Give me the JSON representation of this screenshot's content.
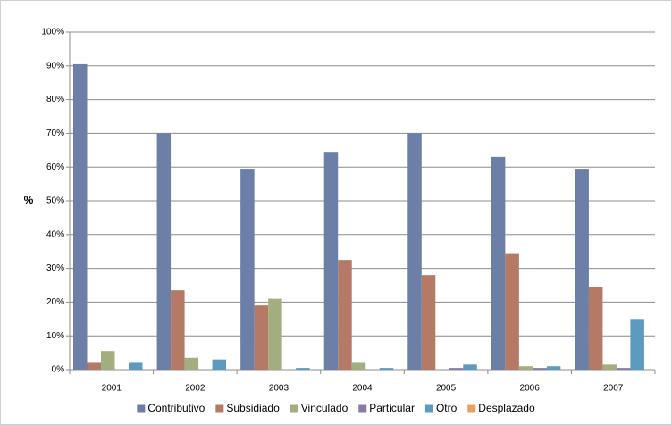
{
  "chart_data": {
    "type": "bar",
    "y_label": "%",
    "categories": [
      "2001",
      "2002",
      "2003",
      "2004",
      "2005",
      "2006",
      "2007"
    ],
    "series": [
      {
        "name": "Contributivo",
        "color": "#6b7fa7",
        "values": [
          90.5,
          70,
          59.5,
          64.5,
          70,
          63,
          59.5
        ]
      },
      {
        "name": "Subsidiado",
        "color": "#b57a65",
        "values": [
          2,
          23.5,
          19,
          32.5,
          28,
          34.5,
          24.5
        ]
      },
      {
        "name": "Vinculado",
        "color": "#a3ae80",
        "values": [
          5.5,
          3.5,
          21,
          2,
          0,
          1,
          1.5
        ]
      },
      {
        "name": "Particular",
        "color": "#8a7ba0",
        "values": [
          0,
          0,
          0,
          0,
          0.5,
          0.5,
          0.5
        ]
      },
      {
        "name": "Otro",
        "color": "#5d9ac0",
        "values": [
          2,
          3,
          0.5,
          0.5,
          1.5,
          1,
          15
        ]
      },
      {
        "name": "Desplazado",
        "color": "#e8a05a",
        "values": [
          0,
          0,
          0,
          0,
          0,
          0,
          0
        ]
      }
    ],
    "ylim": [
      0,
      100
    ],
    "yticks": [
      {
        "value": 0,
        "label": "0%"
      },
      {
        "value": 10,
        "label": "10%"
      },
      {
        "value": 20,
        "label": "20%"
      },
      {
        "value": 30,
        "label": "30%"
      },
      {
        "value": 40,
        "label": "40%"
      },
      {
        "value": 50,
        "label": "50%"
      },
      {
        "value": 60,
        "label": "60%"
      },
      {
        "value": 70,
        "label": "70%"
      },
      {
        "value": 80,
        "label": "80%"
      },
      {
        "value": 90,
        "label": "90%"
      },
      {
        "value": 100,
        "label": "100%"
      }
    ],
    "grid": true,
    "legend": "bottom"
  }
}
